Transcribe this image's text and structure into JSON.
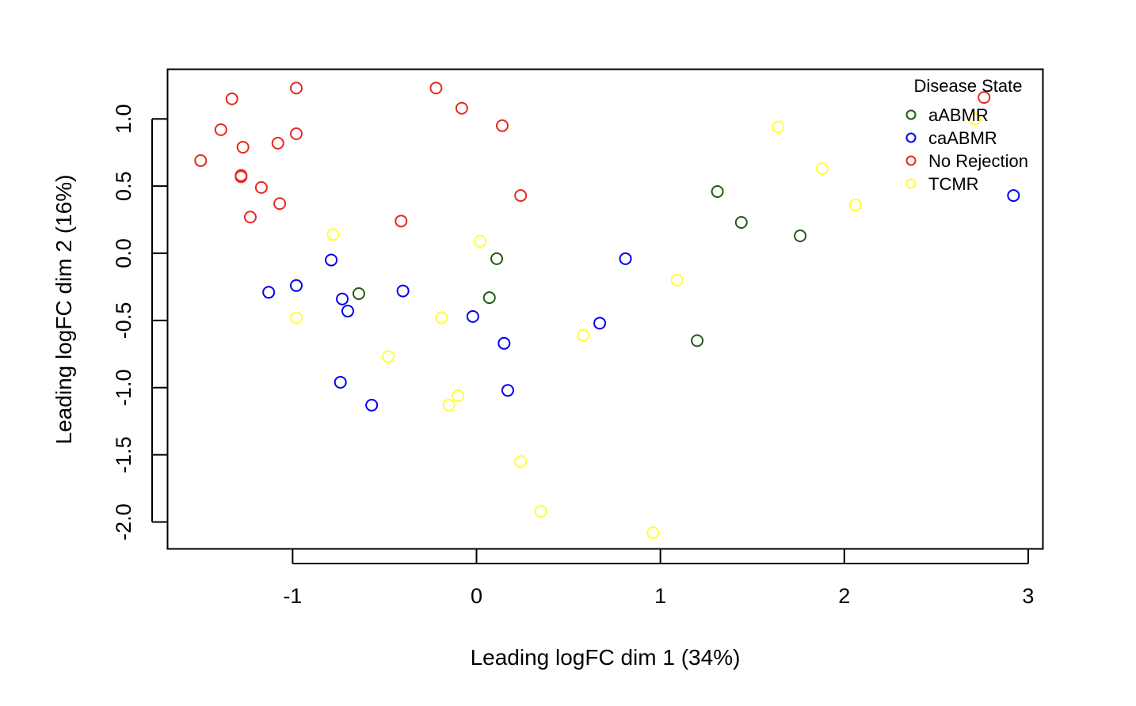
{
  "chart_data": {
    "type": "scatter",
    "title": "",
    "xlabel": "Leading logFC dim 1 (34%)",
    "ylabel": "Leading logFC dim 2 (16%)",
    "xlim": [
      -1.68,
      3.08
    ],
    "ylim": [
      -2.2,
      1.37
    ],
    "xticks": [
      -1,
      0,
      1,
      2,
      3
    ],
    "xtick_labels": [
      "-1",
      "0",
      "1",
      "2",
      "3"
    ],
    "yticks": [
      -2.0,
      -1.5,
      -1.0,
      -0.5,
      0.0,
      0.5,
      1.0
    ],
    "ytick_labels": [
      "-2.0",
      "-1.5",
      "-1.0",
      "-0.5",
      "0.0",
      "0.5",
      "1.0"
    ],
    "grid": false,
    "legend": {
      "title": "Disease State",
      "position": "top-right"
    },
    "series": [
      {
        "name": "aABMR",
        "color": "#1f5c12",
        "points": [
          [
            -0.64,
            -0.3
          ],
          [
            0.11,
            -0.04
          ],
          [
            0.07,
            -0.33
          ],
          [
            1.31,
            0.46
          ],
          [
            1.44,
            0.23
          ],
          [
            1.76,
            0.13
          ],
          [
            1.2,
            -0.65
          ]
        ]
      },
      {
        "name": "caABMR",
        "color": "#0000ee",
        "points": [
          [
            -1.13,
            -0.29
          ],
          [
            -0.98,
            -0.24
          ],
          [
            -0.79,
            -0.05
          ],
          [
            -0.73,
            -0.34
          ],
          [
            -0.7,
            -0.43
          ],
          [
            -0.74,
            -0.96
          ],
          [
            -0.57,
            -1.13
          ],
          [
            -0.4,
            -0.28
          ],
          [
            -0.02,
            -0.47
          ],
          [
            0.15,
            -0.67
          ],
          [
            0.17,
            -1.02
          ],
          [
            0.67,
            -0.52
          ],
          [
            0.81,
            -0.04
          ],
          [
            2.92,
            0.43
          ]
        ]
      },
      {
        "name": "No Rejection",
        "color": "#e8281f",
        "points": [
          [
            -1.5,
            0.69
          ],
          [
            -1.39,
            0.92
          ],
          [
            -1.33,
            1.15
          ],
          [
            -1.27,
            0.79
          ],
          [
            -1.28,
            0.57
          ],
          [
            -1.28,
            0.58
          ],
          [
            -1.23,
            0.27
          ],
          [
            -1.17,
            0.49
          ],
          [
            -1.08,
            0.82
          ],
          [
            -1.07,
            0.37
          ],
          [
            -0.98,
            0.89
          ],
          [
            -0.98,
            1.23
          ],
          [
            -0.41,
            0.24
          ],
          [
            -0.22,
            1.23
          ],
          [
            -0.08,
            1.08
          ],
          [
            0.14,
            0.95
          ],
          [
            0.24,
            0.43
          ],
          [
            2.76,
            1.16
          ]
        ]
      },
      {
        "name": "TCMR",
        "color": "#ffff33",
        "points": [
          [
            -0.78,
            0.14
          ],
          [
            -0.98,
            -0.48
          ],
          [
            -0.48,
            -0.77
          ],
          [
            -0.19,
            -0.48
          ],
          [
            0.02,
            0.09
          ],
          [
            -0.1,
            -1.06
          ],
          [
            -0.15,
            -1.13
          ],
          [
            0.24,
            -1.55
          ],
          [
            0.35,
            -1.92
          ],
          [
            0.58,
            -0.61
          ],
          [
            0.96,
            -2.08
          ],
          [
            1.09,
            -0.2
          ],
          [
            1.64,
            0.94
          ],
          [
            1.88,
            0.63
          ],
          [
            2.06,
            0.36
          ],
          [
            2.71,
            1.0
          ]
        ]
      }
    ]
  }
}
